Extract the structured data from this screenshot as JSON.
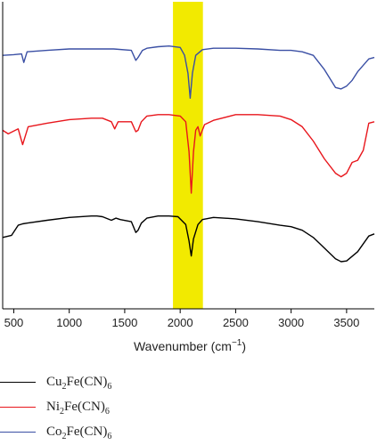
{
  "chart_data": {
    "type": "line",
    "xlabel": "Wavenumber (cm",
    "xlabel_sup": "−1",
    "xlabel_end": ")",
    "xlim": [
      400,
      3750
    ],
    "xticks": [
      500,
      1000,
      1500,
      2000,
      2500,
      3000,
      3500
    ],
    "highlight_band": {
      "x_from": 1935,
      "x_to": 2205,
      "color": "#f2ea00"
    },
    "grid": false,
    "legend_position": "bottom",
    "series": [
      {
        "formula": [
          "Cu",
          "2",
          "Fe(CN)",
          "6"
        ],
        "color": "#000000",
        "x": [
          400,
          480,
          540,
          580,
          620,
          800,
          1000,
          1200,
          1250,
          1300,
          1380,
          1420,
          1460,
          1560,
          1600,
          1620,
          1650,
          1700,
          1800,
          1900,
          1980,
          2050,
          2080,
          2100,
          2120,
          2160,
          2200,
          2300,
          2500,
          2700,
          2900,
          3000,
          3100,
          3200,
          3300,
          3400,
          3450,
          3500,
          3600,
          3700,
          3750
        ],
        "y": [
          1.0,
          1.03,
          1.17,
          1.19,
          1.2,
          1.24,
          1.28,
          1.3,
          1.3,
          1.29,
          1.24,
          1.27,
          1.25,
          1.22,
          1.07,
          1.1,
          1.2,
          1.27,
          1.3,
          1.3,
          1.29,
          1.18,
          0.95,
          0.74,
          0.98,
          1.18,
          1.25,
          1.28,
          1.26,
          1.22,
          1.17,
          1.15,
          1.1,
          1.0,
          0.85,
          0.7,
          0.66,
          0.67,
          0.8,
          1.02,
          1.05
        ]
      },
      {
        "formula": [
          "Ni",
          "2",
          "Fe(CN)",
          "6"
        ],
        "color": "#e8161c",
        "x": [
          400,
          450,
          540,
          580,
          600,
          630,
          800,
          1000,
          1200,
          1300,
          1380,
          1410,
          1440,
          1560,
          1600,
          1620,
          1650,
          1700,
          1800,
          1900,
          2000,
          2050,
          2080,
          2100,
          2120,
          2140,
          2160,
          2180,
          2220,
          2300,
          2500,
          2700,
          2900,
          3000,
          3100,
          3200,
          3300,
          3400,
          3450,
          3500,
          3550,
          3600,
          3650,
          3700,
          3750
        ],
        "y": [
          2.5,
          2.45,
          2.52,
          2.3,
          2.4,
          2.55,
          2.6,
          2.65,
          2.67,
          2.67,
          2.62,
          2.52,
          2.62,
          2.62,
          2.48,
          2.5,
          2.62,
          2.7,
          2.72,
          2.72,
          2.7,
          2.62,
          2.2,
          1.62,
          2.2,
          2.5,
          2.55,
          2.42,
          2.58,
          2.64,
          2.72,
          2.72,
          2.7,
          2.65,
          2.55,
          2.35,
          2.1,
          1.9,
          1.85,
          1.9,
          2.05,
          2.08,
          2.22,
          2.6,
          2.62
        ]
      },
      {
        "formula": [
          "Co",
          "2",
          "Fe(CN)",
          "6"
        ],
        "color": "#3a4fa4",
        "x": [
          400,
          500,
          570,
          590,
          620,
          800,
          1000,
          1200,
          1400,
          1560,
          1600,
          1620,
          1660,
          1700,
          1800,
          1900,
          2000,
          2040,
          2070,
          2090,
          2110,
          2140,
          2200,
          2300,
          2500,
          2700,
          2900,
          3000,
          3100,
          3200,
          3300,
          3400,
          3450,
          3500,
          3550,
          3600,
          3700,
          3750
        ],
        "y": [
          3.55,
          3.56,
          3.57,
          3.45,
          3.6,
          3.62,
          3.64,
          3.64,
          3.64,
          3.62,
          3.48,
          3.52,
          3.62,
          3.65,
          3.67,
          3.68,
          3.66,
          3.55,
          3.3,
          2.95,
          3.3,
          3.55,
          3.63,
          3.65,
          3.65,
          3.64,
          3.62,
          3.62,
          3.6,
          3.55,
          3.35,
          3.1,
          3.08,
          3.12,
          3.2,
          3.32,
          3.5,
          3.52
        ]
      }
    ]
  }
}
